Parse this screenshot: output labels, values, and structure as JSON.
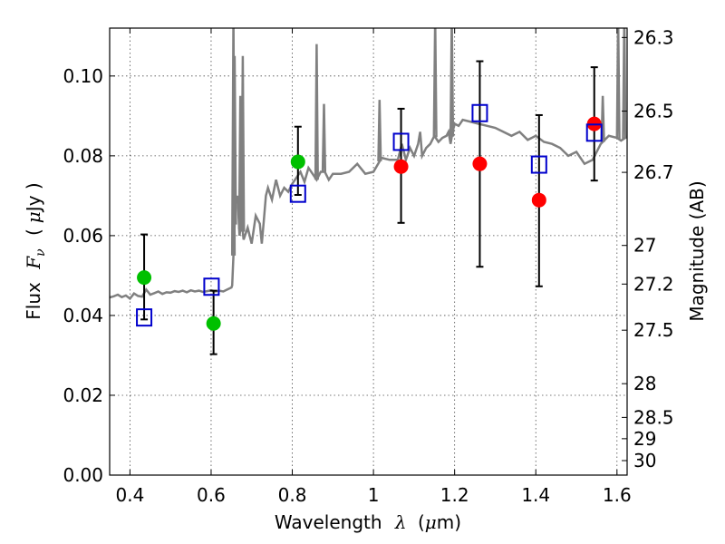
{
  "chart_data": {
    "type": "scatter",
    "xlabel_parts": {
      "prefix": "Wavelength",
      "symbol": "λ",
      "unit_open": "(",
      "unit_mu": "μ",
      "unit_rest": "m)"
    },
    "ylabel_parts": {
      "prefix": "Flux",
      "symbol": "F",
      "subscript": "ν",
      "unit_open": "(",
      "unit_mu": "μ",
      "unit_rest": "Jy )"
    },
    "y2label": "Magnitude (AB)",
    "xlim": [
      0.35,
      1.625
    ],
    "ylim": [
      0.0,
      0.112
    ],
    "grid": true,
    "colors": {
      "spectrum": "#808080",
      "green_points": "#00c000",
      "red_points": "#ff0000",
      "model_squares": "#0000cc",
      "errorbar": "#000000"
    },
    "x_ticks": [
      {
        "value": 0.4,
        "label": "0.4"
      },
      {
        "value": 0.6,
        "label": "0.6"
      },
      {
        "value": 0.8,
        "label": "0.8"
      },
      {
        "value": 1.0,
        "label": "1"
      },
      {
        "value": 1.2,
        "label": "1.2"
      },
      {
        "value": 1.4,
        "label": "1.4"
      },
      {
        "value": 1.6,
        "label": "1.6"
      }
    ],
    "y_ticks": [
      {
        "value": 0.0,
        "label": "0.00"
      },
      {
        "value": 0.02,
        "label": "0.02"
      },
      {
        "value": 0.04,
        "label": "0.04"
      },
      {
        "value": 0.06,
        "label": "0.06"
      },
      {
        "value": 0.08,
        "label": "0.08"
      },
      {
        "value": 0.1,
        "label": "0.10"
      }
    ],
    "mag_ticks": [
      {
        "value": 26.3,
        "label": "26.3"
      },
      {
        "value": 26.5,
        "label": "26.5"
      },
      {
        "value": 26.7,
        "label": "26.7"
      },
      {
        "value": 27.0,
        "label": "27"
      },
      {
        "value": 27.2,
        "label": "27.2"
      },
      {
        "value": 27.5,
        "label": "27.5"
      },
      {
        "value": 28.0,
        "label": "28"
      },
      {
        "value": 28.5,
        "label": "28.5"
      },
      {
        "value": 29.0,
        "label": "29"
      },
      {
        "value": 30.0,
        "label": "30"
      }
    ],
    "observed_points": [
      {
        "x": 0.435,
        "y": 0.0495,
        "err_low": 0.039,
        "err_high": 0.0603,
        "color": "green"
      },
      {
        "x": 0.606,
        "y": 0.038,
        "err_low": 0.0303,
        "err_high": 0.0462,
        "color": "green"
      },
      {
        "x": 0.814,
        "y": 0.0785,
        "err_low": 0.0702,
        "err_high": 0.0873,
        "color": "green"
      },
      {
        "x": 1.068,
        "y": 0.0773,
        "err_low": 0.0632,
        "err_high": 0.0918,
        "color": "red"
      },
      {
        "x": 1.262,
        "y": 0.078,
        "err_low": 0.0522,
        "err_high": 0.1037,
        "color": "red"
      },
      {
        "x": 1.408,
        "y": 0.0689,
        "err_low": 0.0473,
        "err_high": 0.0902,
        "color": "red"
      },
      {
        "x": 1.544,
        "y": 0.088,
        "err_low": 0.0738,
        "err_high": 0.1022,
        "color": "red"
      }
    ],
    "model_squares": [
      {
        "x": 0.435,
        "y": 0.0395
      },
      {
        "x": 0.601,
        "y": 0.0472
      },
      {
        "x": 0.814,
        "y": 0.0705
      },
      {
        "x": 1.068,
        "y": 0.0835
      },
      {
        "x": 1.262,
        "y": 0.0907
      },
      {
        "x": 1.408,
        "y": 0.0778
      },
      {
        "x": 1.544,
        "y": 0.0858
      }
    ],
    "spectrum": {
      "x": [
        0.35,
        0.36,
        0.37,
        0.38,
        0.39,
        0.4,
        0.41,
        0.42,
        0.43,
        0.44,
        0.45,
        0.46,
        0.47,
        0.48,
        0.49,
        0.5,
        0.51,
        0.52,
        0.53,
        0.54,
        0.55,
        0.56,
        0.57,
        0.58,
        0.59,
        0.6,
        0.61,
        0.62,
        0.63,
        0.64,
        0.65,
        0.652,
        0.655,
        0.66,
        0.665,
        0.67,
        0.675,
        0.68,
        0.69,
        0.7,
        0.71,
        0.72,
        0.725,
        0.73,
        0.735,
        0.74,
        0.75,
        0.76,
        0.77,
        0.78,
        0.79,
        0.8,
        0.81,
        0.82,
        0.83,
        0.84,
        0.85,
        0.86,
        0.87,
        0.88,
        0.89,
        0.9,
        0.92,
        0.94,
        0.96,
        0.98,
        1.0,
        1.02,
        1.04,
        1.06,
        1.07,
        1.08,
        1.09,
        1.1,
        1.11,
        1.115,
        1.12,
        1.13,
        1.14,
        1.15,
        1.16,
        1.17,
        1.18,
        1.185,
        1.19,
        1.195,
        1.2,
        1.21,
        1.22,
        1.24,
        1.26,
        1.28,
        1.3,
        1.32,
        1.34,
        1.36,
        1.38,
        1.4,
        1.42,
        1.44,
        1.46,
        1.48,
        1.5,
        1.52,
        1.54,
        1.56,
        1.58,
        1.6,
        1.61,
        1.625
      ],
      "y": [
        0.0445,
        0.0448,
        0.0452,
        0.0446,
        0.045,
        0.0442,
        0.0455,
        0.0449,
        0.0447,
        0.0465,
        0.0452,
        0.0456,
        0.046,
        0.0454,
        0.0458,
        0.0457,
        0.0461,
        0.0459,
        0.0462,
        0.0458,
        0.0463,
        0.046,
        0.0462,
        0.0459,
        0.0461,
        0.0463,
        0.046,
        0.0462,
        0.046,
        0.0465,
        0.047,
        0.0475,
        0.055,
        0.068,
        0.07,
        0.06,
        0.064,
        0.059,
        0.062,
        0.058,
        0.065,
        0.063,
        0.058,
        0.064,
        0.07,
        0.072,
        0.069,
        0.074,
        0.07,
        0.072,
        0.071,
        0.073,
        0.0745,
        0.076,
        0.0735,
        0.077,
        0.0755,
        0.074,
        0.076,
        0.076,
        0.074,
        0.0755,
        0.0755,
        0.076,
        0.078,
        0.0755,
        0.076,
        0.0795,
        0.079,
        0.079,
        0.083,
        0.079,
        0.082,
        0.08,
        0.083,
        0.086,
        0.08,
        0.082,
        0.083,
        0.085,
        0.0835,
        0.0845,
        0.085,
        0.086,
        0.083,
        0.086,
        0.088,
        0.0875,
        0.089,
        0.0885,
        0.088,
        0.0875,
        0.087,
        0.086,
        0.085,
        0.086,
        0.084,
        0.085,
        0.0835,
        0.083,
        0.082,
        0.08,
        0.081,
        0.078,
        0.079,
        0.083,
        0.085,
        0.0845,
        0.0838,
        0.0848
      ],
      "spikes": [
        {
          "x": 0.655,
          "y": 0.115
        },
        {
          "x": 0.658,
          "y": 0.105
        },
        {
          "x": 0.672,
          "y": 0.095
        },
        {
          "x": 0.678,
          "y": 0.105
        },
        {
          "x": 0.86,
          "y": 0.108
        },
        {
          "x": 0.878,
          "y": 0.093
        },
        {
          "x": 1.015,
          "y": 0.094
        },
        {
          "x": 1.152,
          "y": 0.115
        },
        {
          "x": 1.193,
          "y": 0.115
        },
        {
          "x": 1.565,
          "y": 0.095
        },
        {
          "x": 1.603,
          "y": 0.115
        },
        {
          "x": 1.618,
          "y": 0.115
        }
      ]
    }
  }
}
